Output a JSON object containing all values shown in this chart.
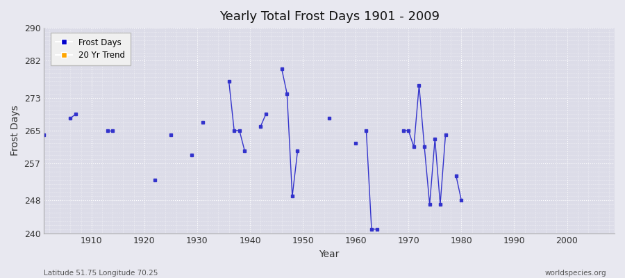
{
  "title": "Yearly Total Frost Days 1901 - 2009",
  "xlabel": "Year",
  "ylabel": "Frost Days",
  "bottom_left_label": "Latitude 51.75 Longitude 70.25",
  "bottom_right_label": "worldspecies.org",
  "ylim": [
    240,
    290
  ],
  "xlim": [
    1901,
    2009
  ],
  "yticks": [
    240,
    248,
    257,
    265,
    273,
    282,
    290
  ],
  "xticks": [
    1910,
    1920,
    1930,
    1940,
    1950,
    1960,
    1970,
    1980,
    1990,
    2000
  ],
  "line_color": "#3333cc",
  "background_color": "#e8e8f0",
  "plot_bg_color": "#dcdce8",
  "grid_color": "#ffffff",
  "legend_entries": [
    "Frost Days",
    "20 Yr Trend"
  ],
  "legend_colors": [
    "#0000cc",
    "#ffa500"
  ],
  "frost_days_data": [
    [
      1901,
      264
    ],
    [
      1906,
      268
    ],
    [
      1907,
      269
    ],
    [
      1913,
      265
    ],
    [
      1914,
      265
    ],
    [
      1922,
      253
    ],
    [
      1925,
      264
    ],
    [
      1929,
      259
    ],
    [
      1931,
      267
    ],
    [
      1936,
      277
    ],
    [
      1937,
      265
    ],
    [
      1938,
      265
    ],
    [
      1939,
      260
    ],
    [
      1942,
      266
    ],
    [
      1943,
      269
    ],
    [
      1946,
      280
    ],
    [
      1947,
      274
    ],
    [
      1948,
      249
    ],
    [
      1949,
      260
    ],
    [
      1955,
      268
    ],
    [
      1960,
      262
    ],
    [
      1962,
      265
    ],
    [
      1963,
      241
    ],
    [
      1964,
      241
    ],
    [
      1969,
      265
    ],
    [
      1970,
      265
    ],
    [
      1971,
      261
    ],
    [
      1972,
      276
    ],
    [
      1973,
      261
    ],
    [
      1974,
      247
    ],
    [
      1975,
      263
    ],
    [
      1976,
      247
    ],
    [
      1977,
      264
    ],
    [
      1979,
      254
    ],
    [
      1980,
      248
    ]
  ]
}
